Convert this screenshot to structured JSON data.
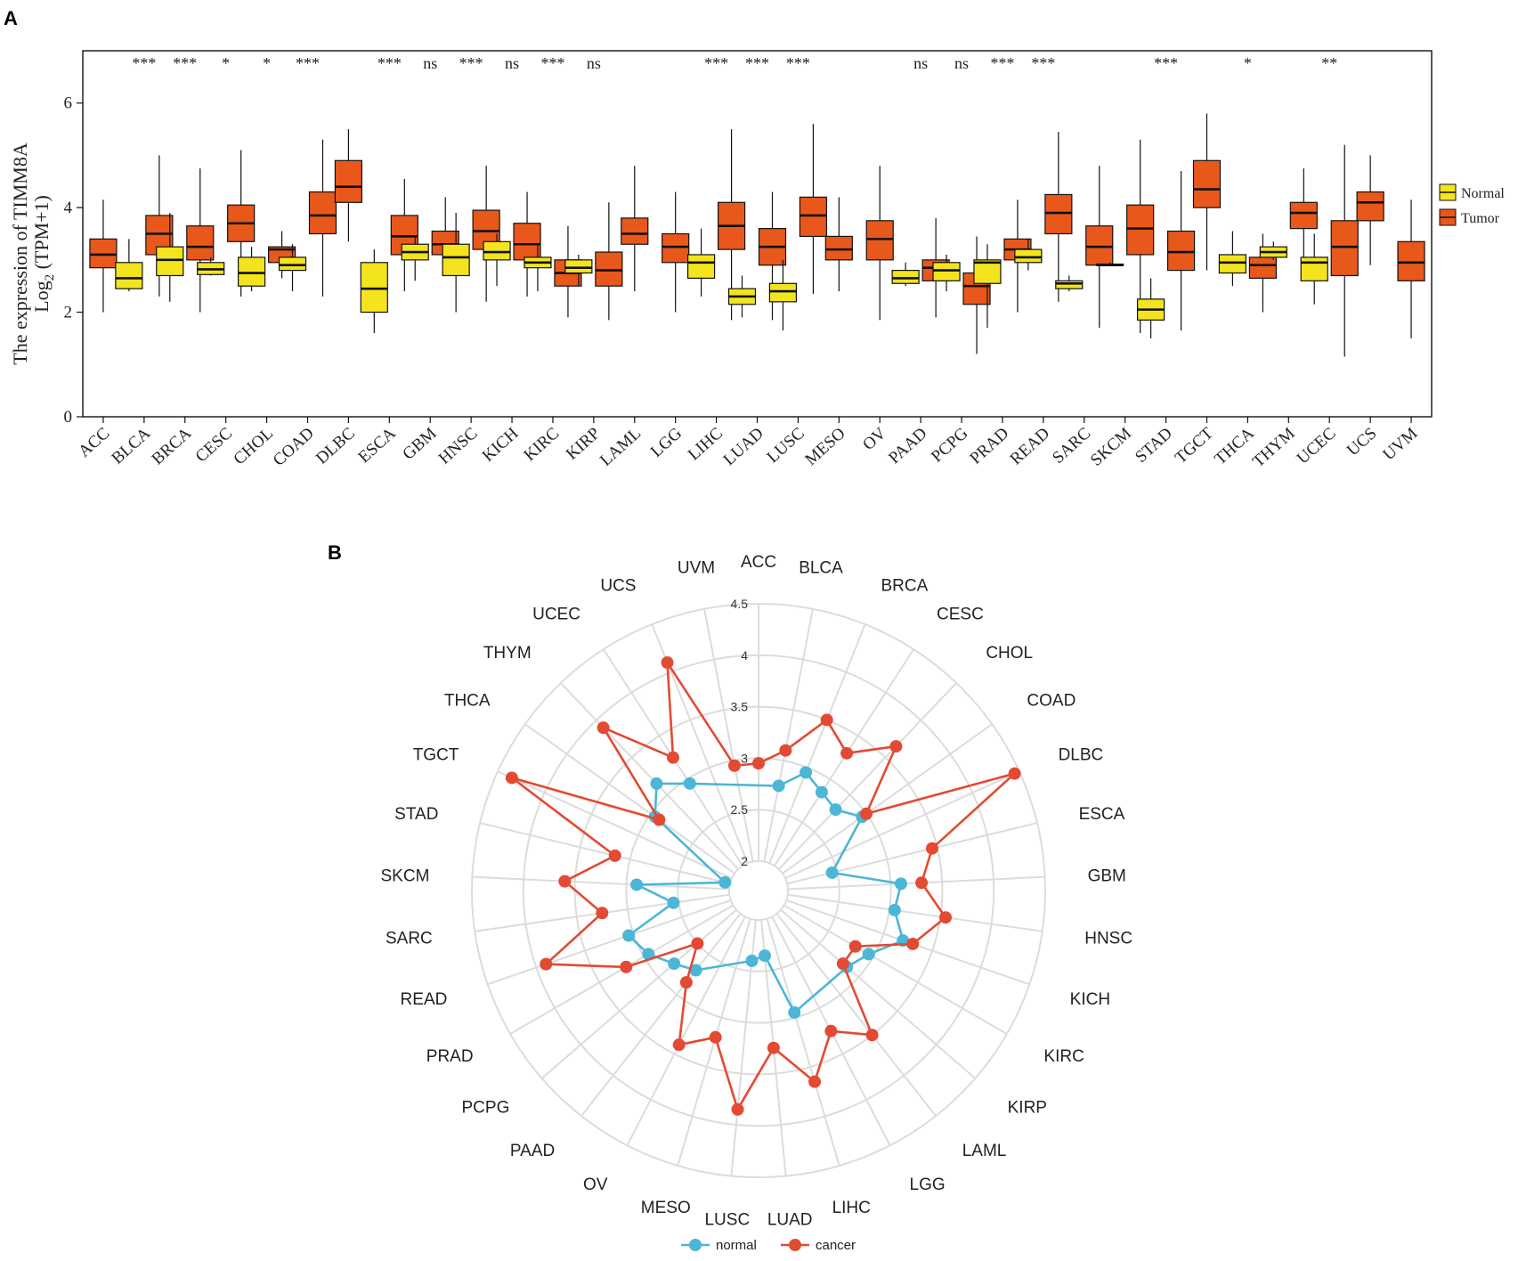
{
  "chart_data": [
    {
      "panel": "A",
      "type": "box",
      "ylabel_line1": "The expression  of TIMM8A",
      "ylabel_line2_pre": "Log",
      "ylabel_line2_sub": "2",
      "ylabel_line2_post": " (TPM+1)",
      "ylim": [
        0,
        7
      ],
      "yticks": [
        "0",
        "2",
        "4",
        "6"
      ],
      "legend": {
        "position": "right",
        "items": [
          {
            "label": "Normal",
            "color": "#f3e41e"
          },
          {
            "label": "Tumor",
            "color": "#e8581b"
          }
        ]
      },
      "categories": [
        "ACC",
        "BLCA",
        "BRCA",
        "CESC",
        "CHOL",
        "COAD",
        "DLBC",
        "ESCA",
        "GBM",
        "HNSC",
        "KICH",
        "KIRC",
        "KIRP",
        "LAML",
        "LGG",
        "LIHC",
        "LUAD",
        "LUSC",
        "MESO",
        "OV",
        "PAAD",
        "PCPG",
        "PRAD",
        "READ",
        "SARC",
        "SKCM",
        "STAD",
        "TGCT",
        "THCA",
        "THYM",
        "UCEC",
        "UCS",
        "UVM"
      ],
      "significance": [
        "",
        "***",
        "***",
        "*",
        "*",
        "***",
        "",
        "***",
        "ns",
        "***",
        "ns",
        "***",
        "ns",
        "",
        "",
        "***",
        "***",
        "***",
        "",
        "",
        "ns",
        "ns",
        "***",
        "***",
        "",
        "",
        "***",
        "",
        "*",
        "",
        "**",
        "",
        ""
      ],
      "series": [
        {
          "name": "Normal",
          "boxes": [
            null,
            {
              "min": 2.4,
              "q1": 2.45,
              "median": 2.65,
              "q3": 2.95,
              "max": 3.4
            },
            {
              "min": 2.2,
              "q1": 2.7,
              "median": 3.0,
              "q3": 3.25,
              "max": 3.9
            },
            {
              "min": 2.7,
              "q1": 2.72,
              "median": 2.82,
              "q3": 2.95,
              "max": 3.05
            },
            {
              "min": 2.4,
              "q1": 2.5,
              "median": 2.75,
              "q3": 3.05,
              "max": 3.25
            },
            {
              "min": 2.4,
              "q1": 2.8,
              "median": 2.9,
              "q3": 3.05,
              "max": 3.3
            },
            null,
            {
              "min": 1.6,
              "q1": 2.0,
              "median": 2.45,
              "q3": 2.95,
              "max": 3.2
            },
            {
              "min": 2.6,
              "q1": 3.0,
              "median": 3.15,
              "q3": 3.3,
              "max": 3.45
            },
            {
              "min": 2.0,
              "q1": 2.7,
              "median": 3.05,
              "q3": 3.3,
              "max": 3.9
            },
            {
              "min": 2.5,
              "q1": 3.0,
              "median": 3.15,
              "q3": 3.35,
              "max": 3.5
            },
            {
              "min": 2.4,
              "q1": 2.85,
              "median": 2.95,
              "q3": 3.05,
              "max": 3.3
            },
            {
              "min": 2.5,
              "q1": 2.75,
              "median": 2.85,
              "q3": 3.0,
              "max": 3.1
            },
            null,
            null,
            {
              "min": 2.3,
              "q1": 2.65,
              "median": 2.95,
              "q3": 3.1,
              "max": 3.6
            },
            {
              "min": 1.9,
              "q1": 2.15,
              "median": 2.3,
              "q3": 2.45,
              "max": 2.7
            },
            {
              "min": 1.65,
              "q1": 2.2,
              "median": 2.4,
              "q3": 2.55,
              "max": 3.0
            },
            null,
            null,
            {
              "min": 2.5,
              "q1": 2.55,
              "median": 2.65,
              "q3": 2.8,
              "max": 2.95
            },
            {
              "min": 2.4,
              "q1": 2.6,
              "median": 2.8,
              "q3": 2.95,
              "max": 3.1
            },
            {
              "min": 1.7,
              "q1": 2.55,
              "median": 2.95,
              "q3": 3.0,
              "max": 3.3
            },
            {
              "min": 2.8,
              "q1": 2.95,
              "median": 3.05,
              "q3": 3.2,
              "max": 3.4
            },
            {
              "min": 2.4,
              "q1": 2.45,
              "median": 2.55,
              "q3": 2.6,
              "max": 2.7
            },
            {
              "min": 2.9,
              "q1": 2.9,
              "median": 2.9,
              "q3": 2.92,
              "max": 2.95
            },
            {
              "min": 1.5,
              "q1": 1.85,
              "median": 2.05,
              "q3": 2.25,
              "max": 2.65
            },
            null,
            {
              "min": 2.5,
              "q1": 2.75,
              "median": 2.95,
              "q3": 3.1,
              "max": 3.55
            },
            {
              "min": 3.0,
              "q1": 3.05,
              "median": 3.15,
              "q3": 3.25,
              "max": 3.35
            },
            {
              "min": 2.15,
              "q1": 2.6,
              "median": 2.95,
              "q3": 3.05,
              "max": 3.5
            },
            null,
            null
          ]
        },
        {
          "name": "Tumor",
          "boxes": [
            {
              "min": 2.0,
              "q1": 2.85,
              "median": 3.1,
              "q3": 3.4,
              "max": 4.15
            },
            {
              "min": 2.3,
              "q1": 3.1,
              "median": 3.5,
              "q3": 3.85,
              "max": 5.0
            },
            {
              "min": 2.0,
              "q1": 3.0,
              "median": 3.25,
              "q3": 3.65,
              "max": 4.75
            },
            {
              "min": 2.3,
              "q1": 3.35,
              "median": 3.7,
              "q3": 4.05,
              "max": 5.1
            },
            {
              "min": 2.65,
              "q1": 2.95,
              "median": 3.2,
              "q3": 3.25,
              "max": 3.55
            },
            {
              "min": 2.3,
              "q1": 3.5,
              "median": 3.85,
              "q3": 4.3,
              "max": 5.3
            },
            {
              "min": 3.35,
              "q1": 4.1,
              "median": 4.4,
              "q3": 4.9,
              "max": 5.5
            },
            {
              "min": 2.4,
              "q1": 3.1,
              "median": 3.45,
              "q3": 3.85,
              "max": 4.55
            },
            {
              "min": 2.75,
              "q1": 3.1,
              "median": 3.3,
              "q3": 3.55,
              "max": 4.2
            },
            {
              "min": 2.2,
              "q1": 3.2,
              "median": 3.55,
              "q3": 3.95,
              "max": 4.8
            },
            {
              "min": 2.3,
              "q1": 3.0,
              "median": 3.3,
              "q3": 3.7,
              "max": 4.3
            },
            {
              "min": 1.9,
              "q1": 2.5,
              "median": 2.75,
              "q3": 3.0,
              "max": 3.65
            },
            {
              "min": 1.85,
              "q1": 2.5,
              "median": 2.8,
              "q3": 3.15,
              "max": 4.1
            },
            {
              "min": 2.4,
              "q1": 3.3,
              "median": 3.5,
              "q3": 3.8,
              "max": 4.8
            },
            {
              "min": 2.0,
              "q1": 2.95,
              "median": 3.25,
              "q3": 3.5,
              "max": 4.3
            },
            {
              "min": 1.85,
              "q1": 3.2,
              "median": 3.65,
              "q3": 4.1,
              "max": 5.5
            },
            {
              "min": 1.85,
              "q1": 2.9,
              "median": 3.25,
              "q3": 3.6,
              "max": 4.3
            },
            {
              "min": 2.35,
              "q1": 3.45,
              "median": 3.85,
              "q3": 4.2,
              "max": 5.6
            },
            {
              "min": 2.4,
              "q1": 3.0,
              "median": 3.2,
              "q3": 3.45,
              "max": 4.2
            },
            {
              "min": 1.85,
              "q1": 3.0,
              "median": 3.4,
              "q3": 3.75,
              "max": 4.8
            },
            {
              "min": 1.9,
              "q1": 2.6,
              "median": 2.85,
              "q3": 3.0,
              "max": 3.8
            },
            {
              "min": 1.2,
              "q1": 2.15,
              "median": 2.5,
              "q3": 2.75,
              "max": 3.45
            },
            {
              "min": 2.0,
              "q1": 3.0,
              "median": 3.2,
              "q3": 3.4,
              "max": 4.15
            },
            {
              "min": 2.2,
              "q1": 3.5,
              "median": 3.9,
              "q3": 4.25,
              "max": 5.45
            },
            {
              "min": 1.7,
              "q1": 2.9,
              "median": 3.25,
              "q3": 3.65,
              "max": 4.8
            },
            {
              "min": 1.6,
              "q1": 3.1,
              "median": 3.6,
              "q3": 4.05,
              "max": 5.3
            },
            {
              "min": 1.65,
              "q1": 2.8,
              "median": 3.15,
              "q3": 3.55,
              "max": 4.7
            },
            {
              "min": 2.8,
              "q1": 4.0,
              "median": 4.35,
              "q3": 4.9,
              "max": 5.8
            },
            {
              "min": 2.0,
              "q1": 2.65,
              "median": 2.9,
              "q3": 3.05,
              "max": 3.5
            },
            {
              "min": 3.0,
              "q1": 3.6,
              "median": 3.9,
              "q3": 4.1,
              "max": 4.75
            },
            {
              "min": 1.15,
              "q1": 2.7,
              "median": 3.25,
              "q3": 3.75,
              "max": 5.2
            },
            {
              "min": 2.9,
              "q1": 3.75,
              "median": 4.1,
              "q3": 4.3,
              "max": 5.0
            },
            {
              "min": 1.5,
              "q1": 2.6,
              "median": 2.95,
              "q3": 3.35,
              "max": 4.15
            }
          ]
        }
      ]
    },
    {
      "panel": "B",
      "type": "radar",
      "rlim": [
        2,
        4.5
      ],
      "ring_labels": [
        "2",
        "2.5",
        "3",
        "3.5",
        "4",
        "4.5"
      ],
      "categories": [
        "ACC",
        "BLCA",
        "BRCA",
        "CESC",
        "CHOL",
        "COAD",
        "DLBC",
        "ESCA",
        "GBM",
        "HNSC",
        "KICH",
        "KIRC",
        "KIRP",
        "LAML",
        "LGG",
        "LIHC",
        "LUAD",
        "LUSC",
        "MESO",
        "OV",
        "PAAD",
        "PCPG",
        "PRAD",
        "READ",
        "SARC",
        "SKCM",
        "STAD",
        "TGCT",
        "THCA",
        "THYM",
        "UCEC",
        "UCS",
        "UVM"
      ],
      "legend": {
        "position": "bottom",
        "items": [
          {
            "label": "normal",
            "color": "#4cb6d6"
          },
          {
            "label": "cancer",
            "color": "#e34a33"
          }
        ]
      },
      "series": [
        {
          "name": "normal",
          "color": "#4cb6d6",
          "values": [
            null,
            2.75,
            2.95,
            2.85,
            2.8,
            2.95,
            null,
            2.45,
            3.1,
            3.05,
            3.2,
            2.95,
            2.85,
            null,
            null,
            2.95,
            2.35,
            2.4,
            null,
            null,
            2.7,
            2.8,
            2.95,
            3.05,
            2.55,
            2.9,
            2.05,
            null,
            2.95,
            3.15,
            2.95,
            null,
            null
          ]
        },
        {
          "name": "cancer",
          "color": "#e34a33",
          "values": [
            2.95,
            3.1,
            3.5,
            3.3,
            3.65,
            3.0,
            4.45,
            3.45,
            3.3,
            3.55,
            3.3,
            2.8,
            2.8,
            3.5,
            3.25,
            3.65,
            3.25,
            3.85,
            3.2,
            3.4,
            2.85,
            2.5,
            3.2,
            3.9,
            3.25,
            3.6,
            3.15,
            4.35,
            2.9,
            3.9,
            3.25,
            4.1,
            2.95
          ]
        }
      ]
    }
  ]
}
